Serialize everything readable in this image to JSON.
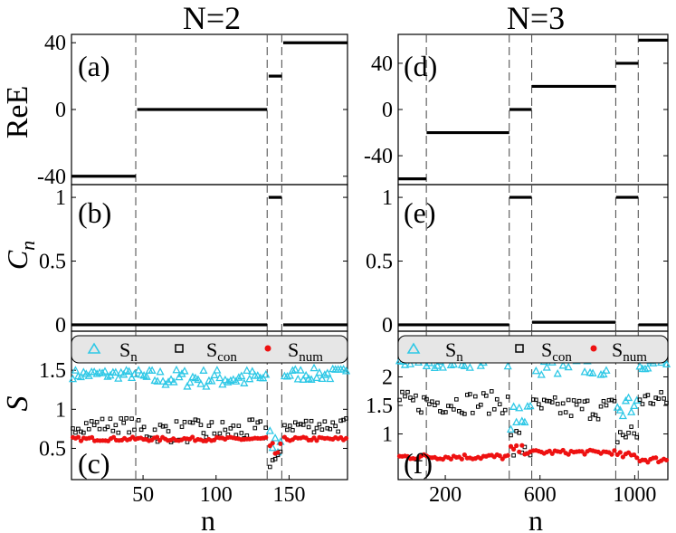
{
  "figure": {
    "column_titles": [
      "N=2",
      "N=3"
    ],
    "row_labels": [
      "ReE",
      "C",
      "S"
    ],
    "row_label_subscripts": [
      "",
      "n",
      ""
    ],
    "xlabel": "n",
    "legend": {
      "sn": "S",
      "sn_sub": "n",
      "scon": "S",
      "scon_sub": "con",
      "snum": "S",
      "snum_sub": "num"
    },
    "panel_letters": [
      "(a)",
      "(b)",
      "(c)",
      "(d)",
      "(e)",
      "(f)"
    ]
  },
  "colors": {
    "sn": "#2ec8e6",
    "scon": "#000000",
    "snum": "#ee1111",
    "main": "#000000",
    "dashes": "#555555"
  },
  "chart_data": [
    {
      "id": "a",
      "type": "line",
      "title": "N=2",
      "ylabel": "ReE",
      "xlim": [
        1,
        190
      ],
      "ylim": [
        -45,
        45
      ],
      "yticks": [
        -40,
        0,
        40
      ],
      "ytick_labels": [
        "-40",
        "0",
        "40"
      ],
      "vlines": [
        45,
        135,
        145
      ],
      "segments": [
        {
          "x": [
            1,
            45
          ],
          "y": -40
        },
        {
          "x": [
            46,
            135
          ],
          "y": 0
        },
        {
          "x": [
            136,
            145
          ],
          "y": 20
        },
        {
          "x": [
            146,
            190
          ],
          "y": 40
        }
      ]
    },
    {
      "id": "b",
      "type": "scatter",
      "ylabel": "Cn",
      "xlim": [
        1,
        190
      ],
      "ylim": [
        -0.05,
        1.1
      ],
      "yticks": [
        0,
        0.5,
        1
      ],
      "ytick_labels": [
        "0",
        "0.5",
        "1"
      ],
      "vlines": [
        45,
        135,
        145
      ],
      "segments": [
        {
          "x": [
            1,
            135
          ],
          "y": 0
        },
        {
          "x": [
            136,
            145
          ],
          "y": 1.0
        },
        {
          "x": [
            146,
            190
          ],
          "y": 0
        }
      ]
    },
    {
      "id": "c",
      "type": "scatter",
      "ylabel": "S",
      "xlabel": "n",
      "xlim": [
        1,
        190
      ],
      "ylim": [
        0.1,
        2.0
      ],
      "xticks": [
        50,
        100,
        150
      ],
      "yticks": [
        0.5,
        1,
        1.5
      ],
      "ytick_labels": [
        "0.5",
        "1",
        "1.5"
      ],
      "vlines": [
        45,
        135,
        145
      ],
      "series": [
        {
          "name": "Sn",
          "marker": "triangle",
          "regions": [
            {
              "x": [
                1,
                45
              ],
              "base": 1.45,
              "spread": 0.06
            },
            {
              "x": [
                46,
                135
              ],
              "base": 1.4,
              "spread": 0.12
            },
            {
              "x": [
                136,
                145
              ],
              "base": 0.55,
              "spread": 0.2
            },
            {
              "x": [
                146,
                190
              ],
              "base": 1.45,
              "spread": 0.08
            }
          ]
        },
        {
          "name": "Scon",
          "marker": "square",
          "regions": [
            {
              "x": [
                1,
                45
              ],
              "base": 0.8,
              "spread": 0.1
            },
            {
              "x": [
                46,
                135
              ],
              "base": 0.72,
              "spread": 0.15
            },
            {
              "x": [
                136,
                145
              ],
              "base": 0.35,
              "spread": 0.12
            },
            {
              "x": [
                146,
                190
              ],
              "base": 0.8,
              "spread": 0.1
            }
          ]
        },
        {
          "name": "Snum",
          "marker": "dot",
          "regions": [
            {
              "x": [
                1,
                135
              ],
              "base": 0.62,
              "spread": 0.025
            },
            {
              "x": [
                136,
                145
              ],
              "base": 0.45,
              "spread": 0.12
            },
            {
              "x": [
                146,
                190
              ],
              "base": 0.62,
              "spread": 0.025
            }
          ]
        }
      ]
    },
    {
      "id": "d",
      "type": "line",
      "title": "N=3",
      "xlim": [
        1,
        1140
      ],
      "ylim": [
        -65,
        65
      ],
      "yticks": [
        -40,
        0,
        40
      ],
      "ytick_labels": [
        "-40",
        "0",
        "40"
      ],
      "vlines": [
        120,
        470,
        565,
        920,
        1015
      ],
      "segments": [
        {
          "x": [
            1,
            120
          ],
          "y": -60
        },
        {
          "x": [
            121,
            470
          ],
          "y": -20
        },
        {
          "x": [
            471,
            565
          ],
          "y": 0
        },
        {
          "x": [
            566,
            920
          ],
          "y": 20
        },
        {
          "x": [
            921,
            1015
          ],
          "y": 40
        },
        {
          "x": [
            1016,
            1140
          ],
          "y": 60
        }
      ]
    },
    {
      "id": "e",
      "type": "scatter",
      "xlim": [
        1,
        1140
      ],
      "ylim": [
        -0.05,
        1.1
      ],
      "yticks": [
        0,
        0.5,
        1
      ],
      "ytick_labels": [
        "0",
        "0.5",
        "1"
      ],
      "vlines": [
        120,
        470,
        565,
        920,
        1015
      ],
      "segments": [
        {
          "x": [
            1,
            470
          ],
          "y": 0
        },
        {
          "x": [
            471,
            565
          ],
          "y": 1.0
        },
        {
          "x": [
            566,
            920
          ],
          "y": 0.02
        },
        {
          "x": [
            921,
            1015
          ],
          "y": 1.0
        },
        {
          "x": [
            1016,
            1140
          ],
          "y": 0
        }
      ]
    },
    {
      "id": "f",
      "type": "scatter",
      "xlabel": "n",
      "xlim": [
        1,
        1140
      ],
      "ylim": [
        0.2,
        2.8
      ],
      "xticks": [
        200,
        600,
        1000
      ],
      "yticks": [
        1,
        1.5,
        2
      ],
      "ytick_labels": [
        "1",
        "1.5",
        "2"
      ],
      "vlines": [
        120,
        470,
        565,
        920,
        1015
      ],
      "series": [
        {
          "name": "Sn",
          "marker": "triangle",
          "regions": [
            {
              "x": [
                1,
                470
              ],
              "base": 2.3,
              "spread": 0.14
            },
            {
              "x": [
                471,
                565
              ],
              "base": 1.4,
              "spread": 0.35
            },
            {
              "x": [
                566,
                920
              ],
              "base": 2.2,
              "spread": 0.18
            },
            {
              "x": [
                921,
                1015
              ],
              "base": 1.6,
              "spread": 0.3
            },
            {
              "x": [
                1016,
                1140
              ],
              "base": 2.25,
              "spread": 0.12
            }
          ]
        },
        {
          "name": "Scon",
          "marker": "square",
          "regions": [
            {
              "x": [
                1,
                470
              ],
              "base": 1.55,
              "spread": 0.2
            },
            {
              "x": [
                471,
                565
              ],
              "base": 0.8,
              "spread": 0.35
            },
            {
              "x": [
                566,
                920
              ],
              "base": 1.45,
              "spread": 0.2
            },
            {
              "x": [
                921,
                1015
              ],
              "base": 1.0,
              "spread": 0.25
            },
            {
              "x": [
                1016,
                1140
              ],
              "base": 1.6,
              "spread": 0.15
            }
          ]
        },
        {
          "name": "Snum",
          "marker": "dot",
          "regions": [
            {
              "x": [
                1,
                470
              ],
              "base": 0.6,
              "spread": 0.05
            },
            {
              "x": [
                471,
                565
              ],
              "base": 0.72,
              "spread": 0.08
            },
            {
              "x": [
                566,
                920
              ],
              "base": 0.68,
              "spread": 0.04
            },
            {
              "x": [
                921,
                1015
              ],
              "base": 0.62,
              "spread": 0.06
            },
            {
              "x": [
                1016,
                1140
              ],
              "base": 0.55,
              "spread": 0.05
            }
          ]
        }
      ]
    }
  ]
}
